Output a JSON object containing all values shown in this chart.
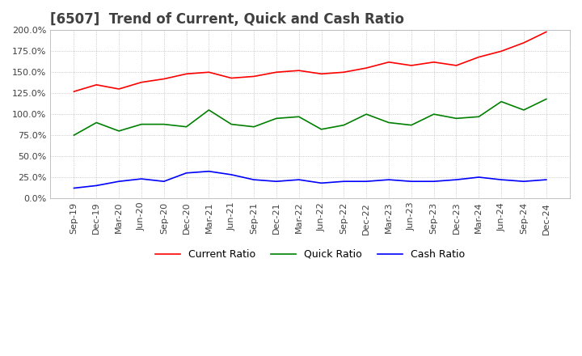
{
  "title": "[6507]  Trend of Current, Quick and Cash Ratio",
  "x_labels": [
    "Sep-19",
    "Dec-19",
    "Mar-20",
    "Jun-20",
    "Sep-20",
    "Dec-20",
    "Mar-21",
    "Jun-21",
    "Sep-21",
    "Dec-21",
    "Mar-22",
    "Jun-22",
    "Sep-22",
    "Dec-22",
    "Mar-23",
    "Jun-23",
    "Sep-23",
    "Dec-23",
    "Mar-24",
    "Jun-24",
    "Sep-24",
    "Dec-24"
  ],
  "current_ratio": [
    127.0,
    135.0,
    130.0,
    138.0,
    142.0,
    148.0,
    150.0,
    143.0,
    145.0,
    150.0,
    152.0,
    148.0,
    150.0,
    155.0,
    162.0,
    158.0,
    162.0,
    158.0,
    168.0,
    175.0,
    185.0,
    198.0
  ],
  "quick_ratio": [
    75.0,
    90.0,
    80.0,
    88.0,
    88.0,
    85.0,
    105.0,
    88.0,
    85.0,
    95.0,
    97.0,
    82.0,
    87.0,
    100.0,
    90.0,
    87.0,
    100.0,
    95.0,
    97.0,
    115.0,
    105.0,
    118.0
  ],
  "cash_ratio": [
    12.0,
    15.0,
    20.0,
    23.0,
    20.0,
    30.0,
    32.0,
    28.0,
    22.0,
    20.0,
    22.0,
    18.0,
    20.0,
    20.0,
    22.0,
    20.0,
    20.0,
    22.0,
    25.0,
    22.0,
    20.0,
    22.0
  ],
  "ylim": [
    0.0,
    200.0
  ],
  "yticks": [
    0,
    25,
    50,
    75,
    100,
    125,
    150,
    175,
    200
  ],
  "current_color": "#FF0000",
  "quick_color": "#008000",
  "cash_color": "#0000FF",
  "bg_color": "#FFFFFF",
  "plot_bg_color": "#FFFFFF",
  "grid_color": "#AAAAAA",
  "title_color": "#404040",
  "title_fontsize": 12,
  "tick_fontsize": 8,
  "legend_fontsize": 9
}
